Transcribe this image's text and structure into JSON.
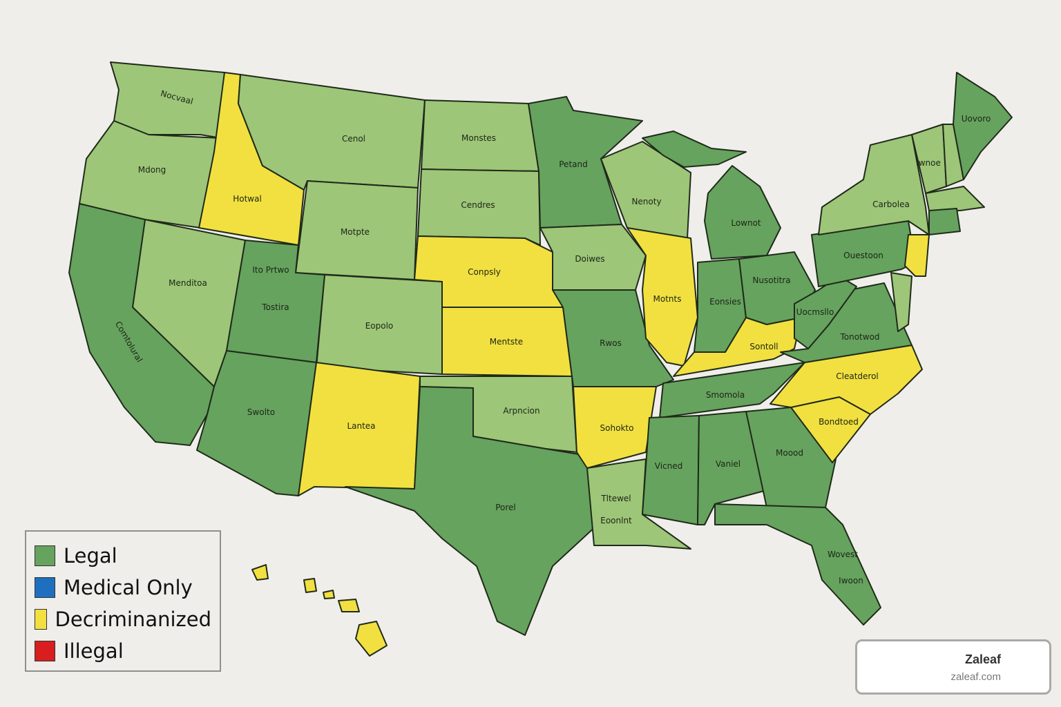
{
  "colors": {
    "legal": "#66a35e",
    "legal_light": "#9dc678",
    "medical": "#1f6fc0",
    "decriminalized": "#f2e040",
    "illegal": "#d81e1e"
  },
  "states": [
    {
      "id": "wa",
      "label": "Nocvaal",
      "status": "legal_light"
    },
    {
      "id": "or",
      "label": "Mdong",
      "status": "legal_light"
    },
    {
      "id": "id",
      "label": "Hotwal",
      "status": "decriminalized"
    },
    {
      "id": "mt",
      "label": "Cenol",
      "status": "legal_light"
    },
    {
      "id": "nd",
      "label": "Monstes",
      "status": "legal_light"
    },
    {
      "id": "sd",
      "label": "Cendres",
      "status": "legal_light"
    },
    {
      "id": "wy",
      "label": "Motpte",
      "status": "legal_light"
    },
    {
      "id": "ne",
      "label": "Conpsly",
      "status": "decriminalized"
    },
    {
      "id": "co",
      "label": "Eopolo",
      "status": "legal_light"
    },
    {
      "id": "ks",
      "label": "Mentste",
      "status": "decriminalized"
    },
    {
      "id": "nv",
      "label": "Menditoa",
      "status": "legal_light"
    },
    {
      "id": "ca",
      "label": "Comtolural",
      "status": "legal"
    },
    {
      "id": "ut",
      "label": "Tostira",
      "status": "legal"
    },
    {
      "id": "az",
      "label": "Swolto",
      "status": "legal"
    },
    {
      "id": "nm",
      "label": "Lantea",
      "status": "decriminalized"
    },
    {
      "id": "ok",
      "label": "Arpncion",
      "status": "legal_light"
    },
    {
      "id": "tx",
      "label": "Porel",
      "status": "legal"
    },
    {
      "id": "mn",
      "label": "Petand",
      "status": "legal"
    },
    {
      "id": "ia",
      "label": "Doiwes",
      "status": "legal_light"
    },
    {
      "id": "mo",
      "label": "Rwos",
      "status": "legal"
    },
    {
      "id": "ar",
      "label": "Sohokto",
      "status": "decriminalized"
    },
    {
      "id": "la",
      "label": "Tltewel",
      "status": "legal_light"
    },
    {
      "id": "wi",
      "label": "Nenoty",
      "status": "legal_light"
    },
    {
      "id": "il",
      "label": "Motnts",
      "status": "decriminalized"
    },
    {
      "id": "mi",
      "label": "Lownot",
      "status": "legal"
    },
    {
      "id": "up",
      "label": "",
      "status": "legal"
    },
    {
      "id": "in",
      "label": "Eonsies",
      "status": "legal"
    },
    {
      "id": "oh",
      "label": "Nusotitra",
      "status": "legal"
    },
    {
      "id": "ky",
      "label": "Sontoll",
      "status": "decriminalized"
    },
    {
      "id": "tn",
      "label": "Smomola",
      "status": "legal"
    },
    {
      "id": "ms",
      "label": "Vicned",
      "status": "legal"
    },
    {
      "id": "al",
      "label": "Vaniel",
      "status": "legal"
    },
    {
      "id": "ga",
      "label": "Moood",
      "status": "legal"
    },
    {
      "id": "fl",
      "label": "Wovest",
      "status": "legal"
    },
    {
      "id": "sc",
      "label": "Bondtoed",
      "status": "decriminalized"
    },
    {
      "id": "nc",
      "label": "Cleatderol",
      "status": "decriminalized"
    },
    {
      "id": "va",
      "label": "Tonotwod",
      "status": "legal"
    },
    {
      "id": "wv",
      "label": "Uocmsllo",
      "status": "legal"
    },
    {
      "id": "pa",
      "label": "Ouestoon",
      "status": "legal"
    },
    {
      "id": "ny",
      "label": "Carbolea",
      "status": "legal_light"
    },
    {
      "id": "nj",
      "label": "",
      "status": "decriminalized"
    },
    {
      "id": "md",
      "label": "",
      "status": "legal_light"
    },
    {
      "id": "vt",
      "label": "Iwnoe",
      "status": "legal_light"
    },
    {
      "id": "nh",
      "label": "",
      "status": "legal_light"
    },
    {
      "id": "me",
      "label": "Uovoro",
      "status": "legal"
    },
    {
      "id": "ma",
      "label": "",
      "status": "legal_light"
    },
    {
      "id": "ct",
      "label": "",
      "status": "legal"
    },
    {
      "id": "hi",
      "label": "",
      "status": "decriminalized"
    }
  ],
  "extra_labels": {
    "ut_small": "Ito Prtwo",
    "la_small": "Eoonlnt",
    "fl_small": "Iwoon"
  },
  "legend": [
    {
      "label": "Legal",
      "color": "#66a35e"
    },
    {
      "label": "Medical Only",
      "color": "#1f6fc0"
    },
    {
      "label": "Decriminanized",
      "color": "#f2e040"
    },
    {
      "label": "Illegal",
      "color": "#d81e1e"
    }
  ],
  "badge": {
    "title": "Zaleaf",
    "url": "zaleaf.com"
  }
}
